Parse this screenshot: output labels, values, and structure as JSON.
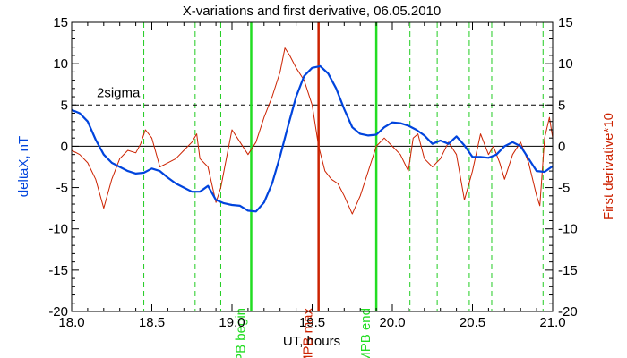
{
  "chart_data": {
    "type": "line",
    "title": "X-variations and first derivative, 06.05.2010",
    "xlabel": "UT, hours",
    "ylabel_left": "deltaX, nT",
    "ylabel_right": "First derivative*10",
    "xlim": [
      18.0,
      21.0
    ],
    "ylim": [
      -20,
      15
    ],
    "x_ticks": [
      18.0,
      18.5,
      19.0,
      19.5,
      20.0,
      20.5,
      21.0
    ],
    "x_tick_labels": [
      "18.0",
      "18.5",
      "19.0",
      "19.5",
      "20.0",
      "20.5",
      "21.0"
    ],
    "y_ticks": [
      -20,
      -15,
      -10,
      -5,
      0,
      5,
      10,
      15
    ],
    "y_tick_labels": [
      "-20",
      "-15",
      "-10",
      "-5",
      "0",
      "5",
      "10",
      "15"
    ],
    "grid": false,
    "colors": {
      "deltaX": "#0044dd",
      "derivative": "#cc2200",
      "mpb_boundary": "#22dd22",
      "mpb_max": "#cc2200",
      "candidate_lines": "#22cc22",
      "zero_line": "#000000",
      "sigma_line": "#000000",
      "left_label": "#0044dd",
      "right_label": "#cc2200"
    },
    "sigma": {
      "value": 5,
      "label": "2sigma"
    },
    "zero_line": 0,
    "vertical_markers": [
      {
        "x": 19.12,
        "label": "MPB begin",
        "kind": "mpb_boundary"
      },
      {
        "x": 19.54,
        "label": "MPB max",
        "kind": "mpb_max"
      },
      {
        "x": 19.9,
        "label": "MPB end",
        "kind": "mpb_boundary"
      }
    ],
    "candidate_lines": [
      18.45,
      18.77,
      18.93,
      20.11,
      20.28,
      20.48,
      20.62,
      20.94
    ],
    "series": [
      {
        "name": "deltaX, nT",
        "key": "deltaX",
        "x": [
          18.0,
          18.05,
          18.1,
          18.15,
          18.2,
          18.25,
          18.3,
          18.35,
          18.4,
          18.45,
          18.5,
          18.55,
          18.6,
          18.65,
          18.7,
          18.75,
          18.8,
          18.85,
          18.9,
          18.95,
          19.0,
          19.05,
          19.1,
          19.15,
          19.2,
          19.25,
          19.3,
          19.35,
          19.4,
          19.45,
          19.5,
          19.55,
          19.6,
          19.65,
          19.7,
          19.75,
          19.8,
          19.85,
          19.9,
          19.95,
          20.0,
          20.05,
          20.1,
          20.15,
          20.2,
          20.25,
          20.3,
          20.35,
          20.4,
          20.45,
          20.5,
          20.55,
          20.6,
          20.65,
          20.7,
          20.75,
          20.8,
          20.85,
          20.9,
          20.95,
          21.0
        ],
        "y": [
          4.4,
          4.0,
          3.0,
          0.8,
          -1.0,
          -2.0,
          -2.5,
          -3.0,
          -3.3,
          -3.2,
          -2.7,
          -3.0,
          -3.8,
          -4.5,
          -5.0,
          -5.5,
          -5.5,
          -4.8,
          -6.5,
          -6.9,
          -7.1,
          -7.2,
          -7.8,
          -7.9,
          -6.8,
          -4.5,
          -1.2,
          2.5,
          6.0,
          8.5,
          9.5,
          9.7,
          8.8,
          7.0,
          4.5,
          2.3,
          1.5,
          1.3,
          1.4,
          2.3,
          2.9,
          2.8,
          2.5,
          2.0,
          1.3,
          0.3,
          0.7,
          0.3,
          1.2,
          0.1,
          -1.3,
          -1.3,
          -1.4,
          -1.0,
          0.0,
          0.5,
          0.0,
          -1.5,
          -3.0,
          -3.1,
          -2.4
        ]
      },
      {
        "name": "First derivative*10",
        "key": "derivative",
        "x": [
          18.0,
          18.05,
          18.1,
          18.15,
          18.2,
          18.25,
          18.3,
          18.35,
          18.4,
          18.43,
          18.46,
          18.5,
          18.55,
          18.6,
          18.65,
          18.7,
          18.75,
          18.78,
          18.8,
          18.85,
          18.9,
          18.93,
          18.96,
          19.0,
          19.05,
          19.1,
          19.15,
          19.2,
          19.25,
          19.3,
          19.33,
          19.36,
          19.4,
          19.45,
          19.5,
          19.54,
          19.58,
          19.62,
          19.66,
          19.7,
          19.75,
          19.8,
          19.85,
          19.9,
          19.95,
          20.0,
          20.05,
          20.1,
          20.13,
          20.16,
          20.2,
          20.25,
          20.3,
          20.35,
          20.4,
          20.45,
          20.5,
          20.55,
          20.6,
          20.63,
          20.67,
          20.7,
          20.75,
          20.8,
          20.85,
          20.9,
          20.92,
          20.95,
          20.98,
          21.0
        ],
        "y": [
          -0.5,
          -1.0,
          -2.0,
          -4.0,
          -7.5,
          -4.0,
          -1.5,
          -0.5,
          -0.8,
          0.3,
          2.0,
          1.0,
          -2.5,
          -2.0,
          -1.5,
          -0.5,
          0.5,
          1.5,
          -1.5,
          -2.5,
          -6.8,
          -5.0,
          -2.0,
          2.0,
          0.5,
          -1.0,
          0.5,
          3.5,
          6.0,
          9.0,
          11.9,
          11.0,
          9.5,
          8.0,
          5.0,
          0.0,
          -3.0,
          -4.0,
          -4.5,
          -6.0,
          -8.2,
          -6.0,
          -3.0,
          0.0,
          1.0,
          0.0,
          -1.0,
          -3.0,
          1.0,
          1.5,
          -1.5,
          -2.5,
          -1.5,
          0.5,
          -1.0,
          -6.5,
          -3.0,
          1.5,
          -1.0,
          0.0,
          -2.0,
          -4.0,
          -1.0,
          0.5,
          -2.0,
          -6.0,
          -7.2,
          1.0,
          3.5,
          1.0
        ]
      }
    ]
  }
}
